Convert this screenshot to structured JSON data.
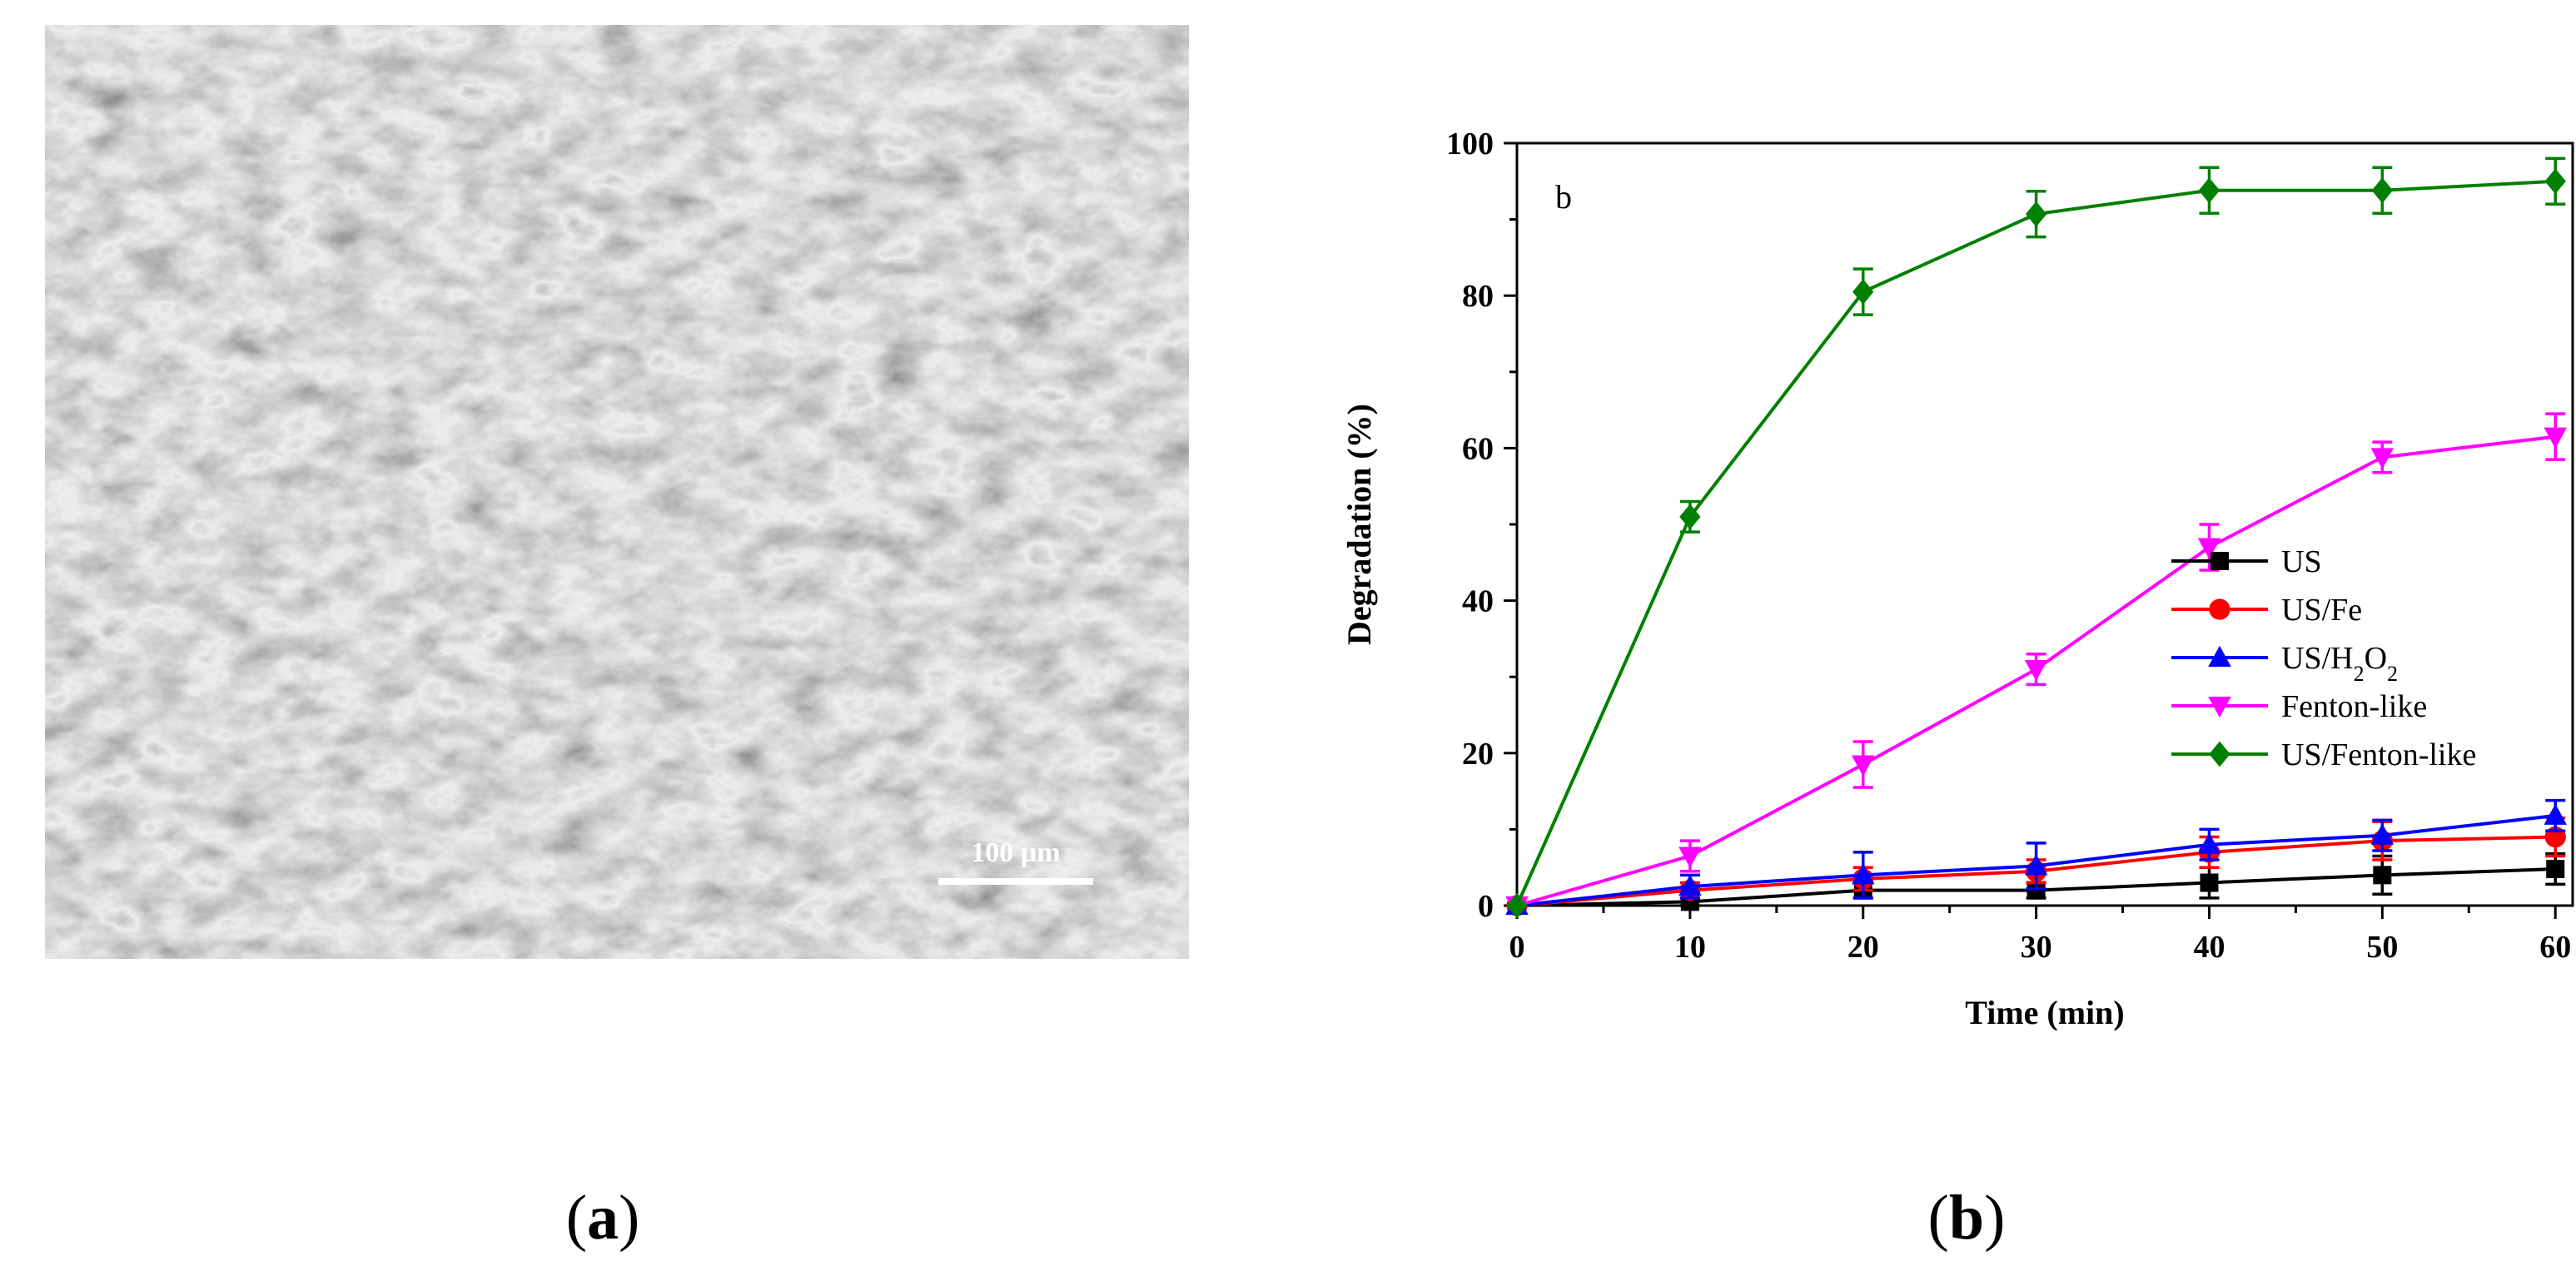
{
  "captions": {
    "a": "a",
    "b": "b"
  },
  "sem_image": {
    "scale_bar_label": "100 µm"
  },
  "chart_data": {
    "type": "line",
    "panel_label": "b",
    "xlabel": "Time (min)",
    "ylabel": "Degradation (%)",
    "xlim": [
      0,
      61
    ],
    "ylim": [
      0,
      100
    ],
    "x_ticks": [
      0,
      10,
      20,
      30,
      40,
      50,
      60
    ],
    "y_ticks": [
      0,
      20,
      40,
      60,
      80,
      100
    ],
    "grid": false,
    "legend_position": "center-right",
    "x": [
      0,
      10,
      20,
      30,
      40,
      50,
      60
    ],
    "series": [
      {
        "name": "US",
        "color": "#000000",
        "marker": "square",
        "values": [
          0,
          0.5,
          2,
          2,
          3,
          4,
          4.8
        ],
        "errors": [
          0,
          0.5,
          1,
          1,
          2,
          2.5,
          2
        ]
      },
      {
        "name": "US/Fe",
        "color": "#ff0000",
        "marker": "circle",
        "values": [
          0,
          2,
          3.5,
          4.5,
          7,
          8.5,
          9
        ],
        "errors": [
          0,
          1,
          1.5,
          1.5,
          2,
          2.5,
          2.5
        ]
      },
      {
        "name": "US/H2O2",
        "color": "#0000ff",
        "marker": "triangle-up",
        "values": [
          0,
          2.5,
          4,
          5.2,
          8,
          9.2,
          11.8
        ],
        "errors": [
          0,
          1.5,
          3,
          3,
          2,
          2,
          2
        ]
      },
      {
        "name": "Fenton-like",
        "color": "#ff00ff",
        "marker": "triangle-down",
        "values": [
          0,
          6.5,
          18.5,
          31,
          47,
          58.8,
          61.5
        ],
        "errors": [
          0,
          2,
          3,
          2,
          3,
          2,
          3
        ]
      },
      {
        "name": "US/Fenton-like",
        "color": "#008000",
        "marker": "diamond",
        "values": [
          0,
          51,
          80.5,
          90.7,
          93.8,
          93.8,
          95
        ],
        "errors": [
          0,
          2,
          3,
          3,
          3,
          3,
          3
        ]
      }
    ]
  }
}
